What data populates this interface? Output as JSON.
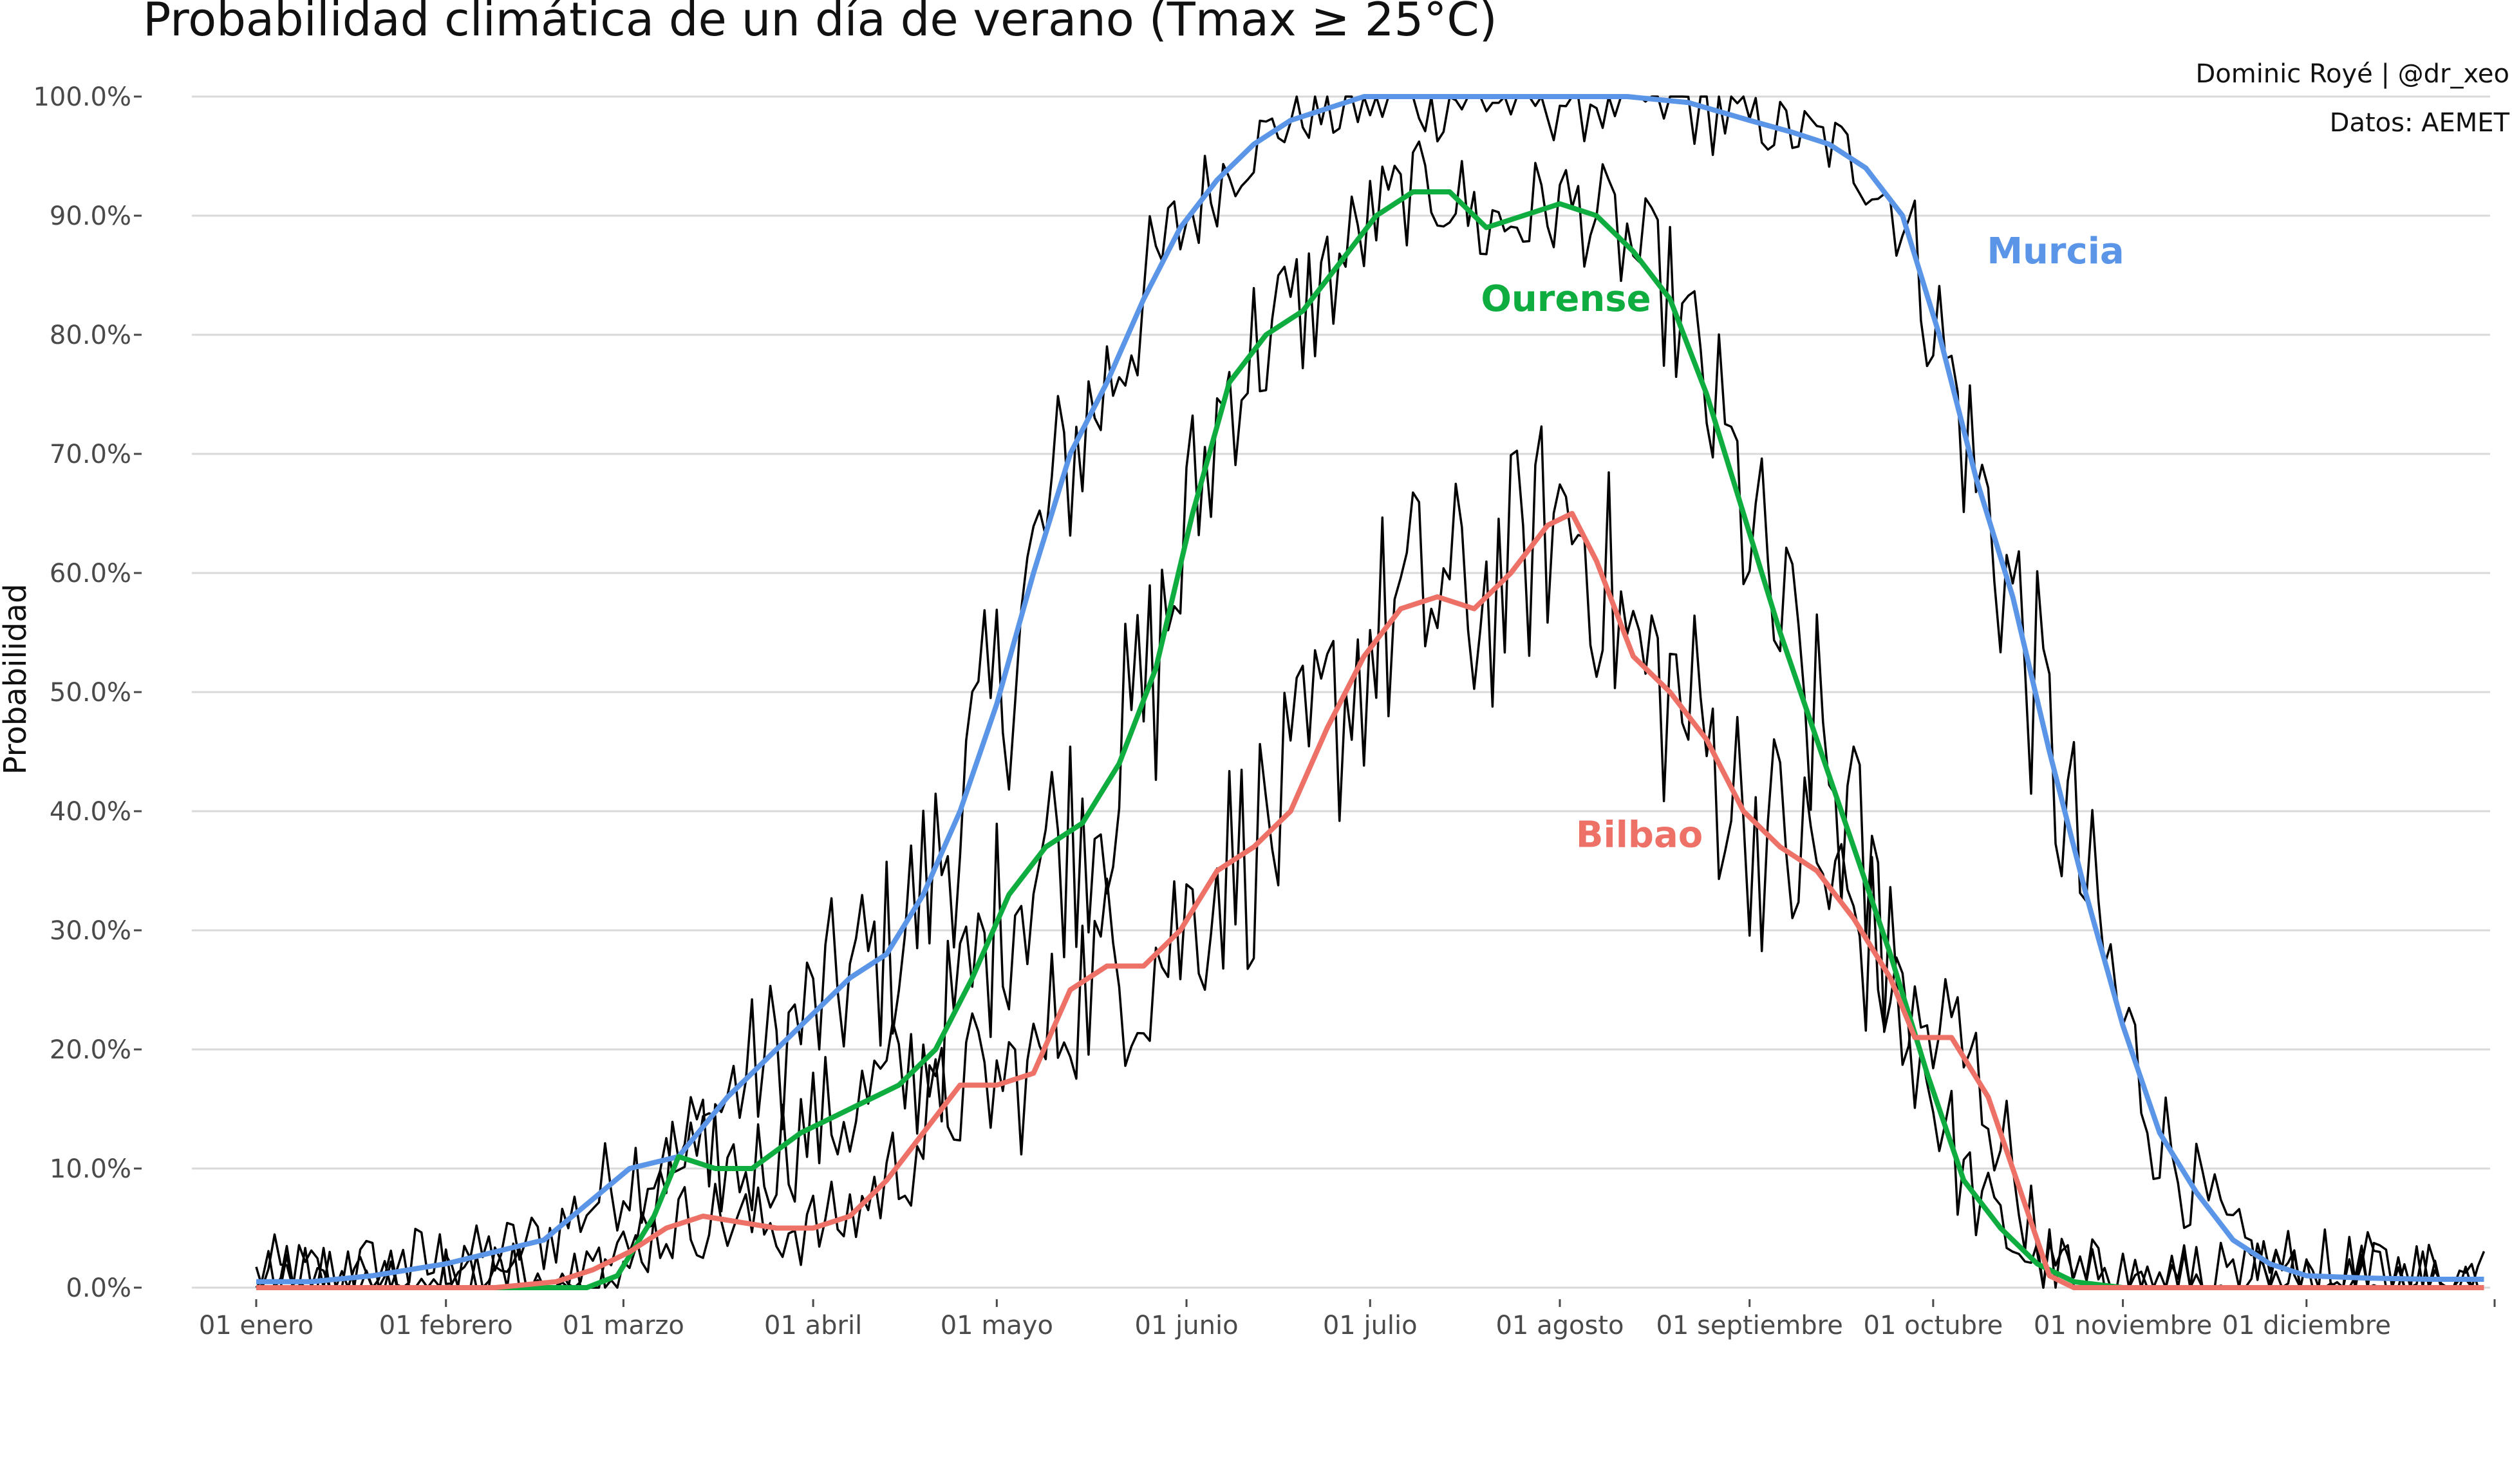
{
  "chart_data": {
    "type": "line",
    "title": "Probabilidad climática de un día de verano (Tmax ≥ 25°C)",
    "caption": [
      "Dominic Royé | @dr_xeo",
      "Datos: AEMET"
    ],
    "xlabel": "",
    "ylabel": "Probabilidad",
    "ylim": [
      0,
      1
    ],
    "y_ticks": [
      "0.0%",
      "10.0%",
      "20.0%",
      "30.0%",
      "40.0%",
      "50.0%",
      "60.0%",
      "70.0%",
      "80.0%",
      "90.0%",
      "100.0%"
    ],
    "y_tick_values": [
      0,
      0.1,
      0.2,
      0.3,
      0.4,
      0.5,
      0.6,
      0.7,
      0.8,
      0.9,
      1.0
    ],
    "x_unit": "day of year",
    "xlim": [
      1,
      366
    ],
    "x_ticks": [
      "01 enero",
      "01 febrero",
      "01 marzo",
      "01 abril",
      "01 mayo",
      "01 junio",
      "01 julio",
      "01 agosto",
      "01 septiembre",
      "01 octubre",
      "01 noviembre",
      "01 diciembre"
    ],
    "x_tick_values": [
      1,
      32,
      61,
      92,
      122,
      153,
      183,
      214,
      245,
      275,
      306,
      336
    ],
    "grid": "horizontal major gridlines",
    "legend": "direct labels on lines",
    "series": [
      {
        "name": "Murcia",
        "color": "#5b95e8",
        "label_x": 295,
        "label_y": 0.86,
        "points": [
          [
            1,
            0.005
          ],
          [
            10,
            0.005
          ],
          [
            20,
            0.01
          ],
          [
            32,
            0.02
          ],
          [
            40,
            0.03
          ],
          [
            48,
            0.04
          ],
          [
            55,
            0.07
          ],
          [
            62,
            0.1
          ],
          [
            70,
            0.11
          ],
          [
            78,
            0.16
          ],
          [
            86,
            0.2
          ],
          [
            92,
            0.23
          ],
          [
            98,
            0.26
          ],
          [
            104,
            0.28
          ],
          [
            110,
            0.33
          ],
          [
            116,
            0.4
          ],
          [
            122,
            0.49
          ],
          [
            128,
            0.6
          ],
          [
            134,
            0.7
          ],
          [
            140,
            0.76
          ],
          [
            146,
            0.83
          ],
          [
            152,
            0.89
          ],
          [
            158,
            0.93
          ],
          [
            164,
            0.96
          ],
          [
            170,
            0.98
          ],
          [
            176,
            0.99
          ],
          [
            182,
            1.0
          ],
          [
            195,
            1.0
          ],
          [
            210,
            1.0
          ],
          [
            225,
            1.0
          ],
          [
            235,
            0.995
          ],
          [
            245,
            0.98
          ],
          [
            252,
            0.97
          ],
          [
            258,
            0.96
          ],
          [
            264,
            0.94
          ],
          [
            270,
            0.9
          ],
          [
            276,
            0.8
          ],
          [
            282,
            0.68
          ],
          [
            288,
            0.58
          ],
          [
            294,
            0.45
          ],
          [
            300,
            0.33
          ],
          [
            306,
            0.22
          ],
          [
            312,
            0.13
          ],
          [
            318,
            0.08
          ],
          [
            324,
            0.04
          ],
          [
            330,
            0.02
          ],
          [
            336,
            0.01
          ],
          [
            346,
            0.008
          ],
          [
            356,
            0.007
          ],
          [
            365,
            0.007
          ]
        ]
      },
      {
        "name": "Ourense",
        "color": "#0fad3f",
        "label_x": 215,
        "label_y": 0.82,
        "points": [
          [
            1,
            0
          ],
          [
            20,
            0
          ],
          [
            40,
            0
          ],
          [
            55,
            0
          ],
          [
            60,
            0.01
          ],
          [
            66,
            0.06
          ],
          [
            70,
            0.11
          ],
          [
            76,
            0.1
          ],
          [
            82,
            0.1
          ],
          [
            90,
            0.13
          ],
          [
            98,
            0.15
          ],
          [
            106,
            0.17
          ],
          [
            112,
            0.2
          ],
          [
            118,
            0.26
          ],
          [
            124,
            0.33
          ],
          [
            130,
            0.37
          ],
          [
            136,
            0.39
          ],
          [
            142,
            0.44
          ],
          [
            148,
            0.52
          ],
          [
            154,
            0.65
          ],
          [
            160,
            0.76
          ],
          [
            166,
            0.8
          ],
          [
            172,
            0.82
          ],
          [
            178,
            0.86
          ],
          [
            184,
            0.9
          ],
          [
            190,
            0.92
          ],
          [
            196,
            0.92
          ],
          [
            202,
            0.89
          ],
          [
            208,
            0.9
          ],
          [
            214,
            0.91
          ],
          [
            220,
            0.9
          ],
          [
            226,
            0.87
          ],
          [
            232,
            0.83
          ],
          [
            238,
            0.75
          ],
          [
            244,
            0.65
          ],
          [
            250,
            0.55
          ],
          [
            256,
            0.46
          ],
          [
            262,
            0.37
          ],
          [
            268,
            0.28
          ],
          [
            274,
            0.18
          ],
          [
            280,
            0.09
          ],
          [
            286,
            0.05
          ],
          [
            292,
            0.02
          ],
          [
            298,
            0.005
          ],
          [
            306,
            0.0
          ],
          [
            320,
            0.0
          ],
          [
            340,
            0.0
          ],
          [
            365,
            0.0
          ]
        ]
      },
      {
        "name": "Bilbao",
        "color": "#ee7168",
        "label_x": 227,
        "label_y": 0.37,
        "points": [
          [
            1,
            0
          ],
          [
            20,
            0
          ],
          [
            40,
            0
          ],
          [
            50,
            0.005
          ],
          [
            56,
            0.015
          ],
          [
            62,
            0.03
          ],
          [
            68,
            0.05
          ],
          [
            74,
            0.06
          ],
          [
            80,
            0.055
          ],
          [
            86,
            0.05
          ],
          [
            92,
            0.05
          ],
          [
            98,
            0.06
          ],
          [
            104,
            0.09
          ],
          [
            110,
            0.13
          ],
          [
            116,
            0.17
          ],
          [
            122,
            0.17
          ],
          [
            128,
            0.18
          ],
          [
            134,
            0.25
          ],
          [
            140,
            0.27
          ],
          [
            146,
            0.27
          ],
          [
            152,
            0.3
          ],
          [
            158,
            0.35
          ],
          [
            164,
            0.37
          ],
          [
            170,
            0.4
          ],
          [
            176,
            0.47
          ],
          [
            182,
            0.53
          ],
          [
            188,
            0.57
          ],
          [
            194,
            0.58
          ],
          [
            200,
            0.57
          ],
          [
            206,
            0.6
          ],
          [
            212,
            0.64
          ],
          [
            216,
            0.65
          ],
          [
            220,
            0.61
          ],
          [
            226,
            0.53
          ],
          [
            232,
            0.5
          ],
          [
            238,
            0.46
          ],
          [
            244,
            0.4
          ],
          [
            250,
            0.37
          ],
          [
            256,
            0.35
          ],
          [
            262,
            0.31
          ],
          [
            268,
            0.26
          ],
          [
            272,
            0.21
          ],
          [
            278,
            0.21
          ],
          [
            284,
            0.16
          ],
          [
            290,
            0.07
          ],
          [
            294,
            0.01
          ],
          [
            298,
            0.0
          ],
          [
            310,
            0.0
          ],
          [
            330,
            0.0
          ],
          [
            365,
            0.0
          ]
        ]
      }
    ]
  }
}
